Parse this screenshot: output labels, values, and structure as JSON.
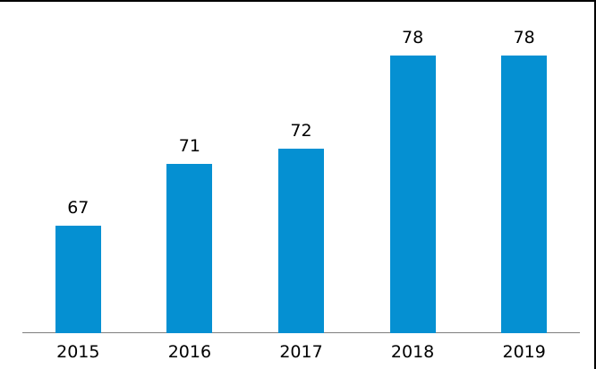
{
  "chart_data": {
    "type": "bar",
    "categories": [
      "2015",
      "2016",
      "2017",
      "2018",
      "2019"
    ],
    "values": [
      67,
      71,
      72,
      78,
      78
    ],
    "data_labels": [
      "67",
      "71",
      "72",
      "78",
      "78"
    ],
    "title": "",
    "xlabel": "",
    "ylabel": "",
    "ylim": [
      60,
      80
    ],
    "grid": false,
    "legend": "none",
    "y_axis_visible": false,
    "bar_color": "#0590d2",
    "axis_line_color": "#7f7f7f",
    "label_color": "#000000",
    "background_color": "#ffffff",
    "border_color": "#000000"
  }
}
